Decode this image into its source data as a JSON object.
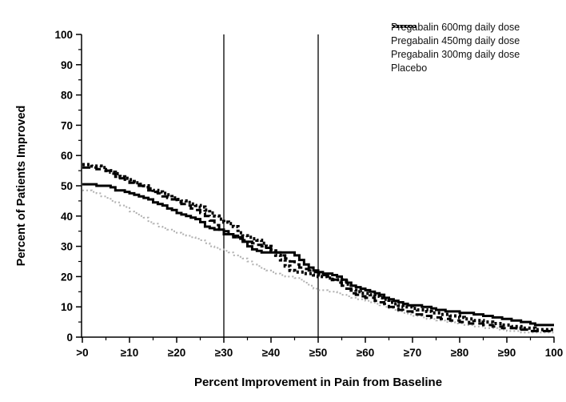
{
  "chart_data": {
    "type": "line",
    "subtype": "step-after",
    "title": "",
    "xlabel": "Percent Improvement in Pain from Baseline",
    "ylabel": "Percent of Patients Improved",
    "xlim": [
      0,
      100
    ],
    "ylim": [
      0,
      100
    ],
    "grid": false,
    "legend_position": "top-right",
    "reference_lines_x": [
      30,
      50
    ],
    "x_ticks": [
      {
        "value": 0,
        "label": ">0"
      },
      {
        "value": 10,
        "label": "≥10"
      },
      {
        "value": 20,
        "label": "≥20"
      },
      {
        "value": 30,
        "label": "≥30"
      },
      {
        "value": 40,
        "label": "≥40"
      },
      {
        "value": 50,
        "label": "≥50"
      },
      {
        "value": 60,
        "label": "≥60"
      },
      {
        "value": 70,
        "label": "≥70"
      },
      {
        "value": 80,
        "label": "≥80"
      },
      {
        "value": 90,
        "label": "≥90"
      },
      {
        "value": 100,
        "label": "100"
      }
    ],
    "y_ticks": [
      0,
      10,
      20,
      30,
      40,
      50,
      60,
      70,
      80,
      90,
      100
    ],
    "minor_tick_step": 5,
    "axis_color": "#000000",
    "series": [
      {
        "name": "Pregabalin 600mg daily dose",
        "style": "solid",
        "color": "#000000",
        "points": [
          [
            0,
            50.5
          ],
          [
            3,
            50
          ],
          [
            6,
            49.5
          ],
          [
            7,
            48.5
          ],
          [
            9,
            48
          ],
          [
            10,
            47.5
          ],
          [
            11,
            47
          ],
          [
            12,
            46.5
          ],
          [
            13,
            46
          ],
          [
            14,
            45.5
          ],
          [
            15,
            44.5
          ],
          [
            16,
            44
          ],
          [
            17,
            43.5
          ],
          [
            18,
            42.5
          ],
          [
            19,
            42
          ],
          [
            20,
            41
          ],
          [
            21,
            40.5
          ],
          [
            22,
            40
          ],
          [
            23,
            39.5
          ],
          [
            24,
            39
          ],
          [
            25,
            38
          ],
          [
            26,
            36.5
          ],
          [
            27,
            36
          ],
          [
            28,
            35.5
          ],
          [
            30,
            35
          ],
          [
            31,
            34
          ],
          [
            32,
            33.5
          ],
          [
            33,
            33
          ],
          [
            34,
            31.5
          ],
          [
            35,
            30
          ],
          [
            36,
            29
          ],
          [
            37,
            28.5
          ],
          [
            38,
            28
          ],
          [
            44,
            28
          ],
          [
            45,
            27
          ],
          [
            46,
            25.5
          ],
          [
            47,
            24
          ],
          [
            48,
            23
          ],
          [
            49,
            22
          ],
          [
            50,
            21.5
          ],
          [
            51,
            21
          ],
          [
            53,
            20.5
          ],
          [
            54,
            20
          ],
          [
            55,
            19
          ],
          [
            56,
            18
          ],
          [
            57,
            17
          ],
          [
            58,
            16.5
          ],
          [
            59,
            16
          ],
          [
            60,
            15.5
          ],
          [
            61,
            15
          ],
          [
            62,
            14.5
          ],
          [
            63,
            14
          ],
          [
            64,
            13
          ],
          [
            65,
            12.5
          ],
          [
            66,
            12
          ],
          [
            67,
            11.5
          ],
          [
            68,
            11
          ],
          [
            69,
            10.5
          ],
          [
            72,
            10
          ],
          [
            74,
            9.5
          ],
          [
            75,
            9
          ],
          [
            77,
            8.5
          ],
          [
            80,
            8
          ],
          [
            83,
            7.5
          ],
          [
            85,
            7
          ],
          [
            87,
            6.5
          ],
          [
            89,
            6
          ],
          [
            91,
            5.5
          ],
          [
            93,
            5
          ],
          [
            95,
            4.5
          ],
          [
            96,
            4
          ],
          [
            100,
            4
          ]
        ]
      },
      {
        "name": "Pregabalin 450mg daily dose",
        "style": "dense-dotted",
        "color": "#000000",
        "points": [
          [
            0,
            57
          ],
          [
            2,
            56.5
          ],
          [
            4,
            56
          ],
          [
            5,
            55
          ],
          [
            6,
            54.5
          ],
          [
            7,
            54
          ],
          [
            8,
            53
          ],
          [
            9,
            52.5
          ],
          [
            10,
            52
          ],
          [
            11,
            51
          ],
          [
            12,
            50.5
          ],
          [
            13,
            50
          ],
          [
            14,
            49
          ],
          [
            15,
            48.5
          ],
          [
            16,
            48
          ],
          [
            17,
            47.5
          ],
          [
            18,
            47
          ],
          [
            19,
            46
          ],
          [
            20,
            45.5
          ],
          [
            21,
            45
          ],
          [
            22,
            44.5
          ],
          [
            23,
            44
          ],
          [
            24,
            43.5
          ],
          [
            25,
            43
          ],
          [
            26,
            42
          ],
          [
            27,
            41
          ],
          [
            28,
            40
          ],
          [
            29,
            39
          ],
          [
            30,
            38
          ],
          [
            31,
            37.5
          ],
          [
            32,
            36.5
          ],
          [
            33,
            34.5
          ],
          [
            34,
            33.5
          ],
          [
            35,
            33
          ],
          [
            36,
            32.5
          ],
          [
            37,
            32
          ],
          [
            38,
            31
          ],
          [
            39,
            30
          ],
          [
            40,
            28.5
          ],
          [
            41,
            27
          ],
          [
            42,
            25.5
          ],
          [
            43,
            23.5
          ],
          [
            44,
            22
          ],
          [
            45,
            21.5
          ],
          [
            47,
            21
          ],
          [
            49,
            20.5
          ],
          [
            50,
            20
          ],
          [
            52,
            19.5
          ],
          [
            53,
            19
          ],
          [
            55,
            18.5
          ],
          [
            56,
            17.5
          ],
          [
            57,
            15.5
          ],
          [
            58,
            15
          ],
          [
            59,
            14.5
          ],
          [
            61,
            14
          ],
          [
            62,
            13.5
          ],
          [
            63,
            13
          ],
          [
            64,
            12.5
          ],
          [
            65,
            11.5
          ],
          [
            66,
            11
          ],
          [
            67,
            10.5
          ],
          [
            68,
            10
          ],
          [
            70,
            9.5
          ],
          [
            71,
            9
          ],
          [
            73,
            8.5
          ],
          [
            74,
            8
          ],
          [
            76,
            7.5
          ],
          [
            78,
            7
          ],
          [
            80,
            6.5
          ],
          [
            81,
            6
          ],
          [
            83,
            5.5
          ],
          [
            85,
            5
          ],
          [
            87,
            4.5
          ],
          [
            89,
            4
          ],
          [
            91,
            3.5
          ],
          [
            93,
            3
          ],
          [
            96,
            2.5
          ],
          [
            100,
            2.5
          ]
        ]
      },
      {
        "name": "Pregabalin 300mg daily dose",
        "style": "dashed",
        "color": "#000000",
        "points": [
          [
            0,
            56
          ],
          [
            3,
            55.5
          ],
          [
            5,
            55
          ],
          [
            6,
            54
          ],
          [
            7,
            53
          ],
          [
            8,
            52.5
          ],
          [
            9,
            52
          ],
          [
            10,
            51
          ],
          [
            11,
            50.5
          ],
          [
            12,
            50
          ],
          [
            13,
            49.5
          ],
          [
            14,
            48.5
          ],
          [
            15,
            48
          ],
          [
            16,
            47.5
          ],
          [
            17,
            46.5
          ],
          [
            18,
            46
          ],
          [
            19,
            45.5
          ],
          [
            20,
            44.5
          ],
          [
            21,
            44
          ],
          [
            22,
            43.5
          ],
          [
            23,
            42.5
          ],
          [
            24,
            42
          ],
          [
            25,
            41
          ],
          [
            26,
            40
          ],
          [
            27,
            38.5
          ],
          [
            28,
            37
          ],
          [
            29,
            35.5
          ],
          [
            30,
            34
          ],
          [
            32,
            33
          ],
          [
            33,
            32.5
          ],
          [
            34,
            32
          ],
          [
            35,
            31.5
          ],
          [
            36,
            31
          ],
          [
            37,
            30.5
          ],
          [
            38,
            30
          ],
          [
            39,
            29.5
          ],
          [
            40,
            29
          ],
          [
            41,
            28
          ],
          [
            42,
            27
          ],
          [
            43,
            26
          ],
          [
            44,
            25
          ],
          [
            45,
            24
          ],
          [
            46,
            23
          ],
          [
            47,
            22.5
          ],
          [
            48,
            22
          ],
          [
            49,
            21.5
          ],
          [
            50,
            21
          ],
          [
            51,
            20.5
          ],
          [
            52,
            20
          ],
          [
            53,
            19
          ],
          [
            54,
            18
          ],
          [
            55,
            17
          ],
          [
            56,
            16
          ],
          [
            57,
            14.5
          ],
          [
            58,
            14
          ],
          [
            59,
            13.5
          ],
          [
            60,
            13
          ],
          [
            62,
            12
          ],
          [
            63,
            11.5
          ],
          [
            64,
            11
          ],
          [
            65,
            10
          ],
          [
            66,
            9.5
          ],
          [
            67,
            9
          ],
          [
            68,
            8.5
          ],
          [
            70,
            7.5
          ],
          [
            72,
            7
          ],
          [
            74,
            6.5
          ],
          [
            76,
            6
          ],
          [
            78,
            5.5
          ],
          [
            80,
            5
          ],
          [
            82,
            4.5
          ],
          [
            85,
            4
          ],
          [
            87,
            3.5
          ],
          [
            89,
            3
          ],
          [
            92,
            2.5
          ],
          [
            95,
            2
          ],
          [
            100,
            2
          ]
        ]
      },
      {
        "name": "Placebo",
        "style": "dotted",
        "color": "#b0b0b0",
        "points": [
          [
            0,
            48.5
          ],
          [
            2,
            48
          ],
          [
            3,
            47.5
          ],
          [
            4,
            46.5
          ],
          [
            5,
            46
          ],
          [
            6,
            45
          ],
          [
            7,
            44.5
          ],
          [
            8,
            43.5
          ],
          [
            9,
            43
          ],
          [
            10,
            41.5
          ],
          [
            11,
            41
          ],
          [
            12,
            40
          ],
          [
            13,
            39.5
          ],
          [
            14,
            38
          ],
          [
            15,
            37.5
          ],
          [
            16,
            36.5
          ],
          [
            17,
            36
          ],
          [
            18,
            35.5
          ],
          [
            19,
            35
          ],
          [
            20,
            34.5
          ],
          [
            21,
            34
          ],
          [
            22,
            33.5
          ],
          [
            23,
            33
          ],
          [
            24,
            32.5
          ],
          [
            25,
            32
          ],
          [
            26,
            31
          ],
          [
            27,
            30
          ],
          [
            28,
            29.5
          ],
          [
            29,
            29
          ],
          [
            30,
            28.5
          ],
          [
            31,
            28
          ],
          [
            32,
            27
          ],
          [
            33,
            26.5
          ],
          [
            34,
            26
          ],
          [
            35,
            25
          ],
          [
            36,
            24
          ],
          [
            37,
            23.5
          ],
          [
            38,
            22.5
          ],
          [
            39,
            22
          ],
          [
            40,
            21.5
          ],
          [
            41,
            21
          ],
          [
            42,
            20.5
          ],
          [
            43,
            20
          ],
          [
            45,
            19.5
          ],
          [
            46,
            19
          ],
          [
            47,
            18
          ],
          [
            48,
            17
          ],
          [
            49,
            16
          ],
          [
            50,
            15.5
          ],
          [
            52,
            15
          ],
          [
            54,
            14.5
          ],
          [
            55,
            14
          ],
          [
            56,
            13.5
          ],
          [
            57,
            13
          ],
          [
            58,
            12.5
          ],
          [
            60,
            12
          ],
          [
            61,
            11.5
          ],
          [
            62,
            11
          ],
          [
            63,
            10.5
          ],
          [
            64,
            10
          ],
          [
            65,
            9.5
          ],
          [
            66,
            9
          ],
          [
            67,
            8.5
          ],
          [
            68,
            8
          ],
          [
            69,
            7.5
          ],
          [
            70,
            7
          ],
          [
            72,
            6.5
          ],
          [
            73,
            6
          ],
          [
            75,
            5.5
          ],
          [
            77,
            5
          ],
          [
            79,
            4.5
          ],
          [
            81,
            4
          ],
          [
            83,
            3.5
          ],
          [
            85,
            3
          ],
          [
            88,
            2.5
          ],
          [
            90,
            2
          ],
          [
            93,
            1.5
          ],
          [
            100,
            1.5
          ]
        ]
      }
    ]
  }
}
